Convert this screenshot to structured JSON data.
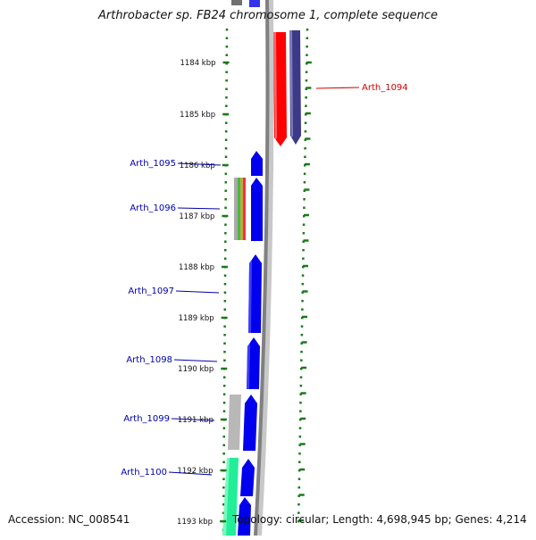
{
  "title": "Arthrobacter sp. FB24 chromosome 1, complete sequence",
  "accession_text": "Accession: NC_008541",
  "topology_text": "Topology: circular; Length: 4,698,945 bp; Genes: 4,214",
  "coordinate_labels": [
    "1184 kbp",
    "1185 kbp",
    "1186 kbp",
    "1187 kbp",
    "1188 kbp",
    "1189 kbp",
    "1190 kbp",
    "1191 kbp",
    "1192 kbp",
    "1193 kbp"
  ],
  "gene_labels": {
    "right": [
      {
        "name": "Arth_1094",
        "color": "#d40000"
      }
    ],
    "left": [
      {
        "name": "Arth_1095",
        "color": "#0000aa"
      },
      {
        "name": "Arth_1096",
        "color": "#0000aa"
      },
      {
        "name": "Arth_1097",
        "color": "#0000aa"
      },
      {
        "name": "Arth_1098",
        "color": "#0000aa"
      },
      {
        "name": "Arth_1099",
        "color": "#0000aa"
      },
      {
        "name": "Arth_1100",
        "color": "#0000aa"
      }
    ]
  },
  "colors": {
    "axis_tick": "#1a7a1a",
    "backbone": "#808080",
    "gene_forward": "#0000ee",
    "gene_reverse_red": "#ff0000",
    "gene_reverse_purple": "#3a3a88",
    "gene_grey": "#b8b8b8",
    "gene_teal": "#22ee99"
  }
}
